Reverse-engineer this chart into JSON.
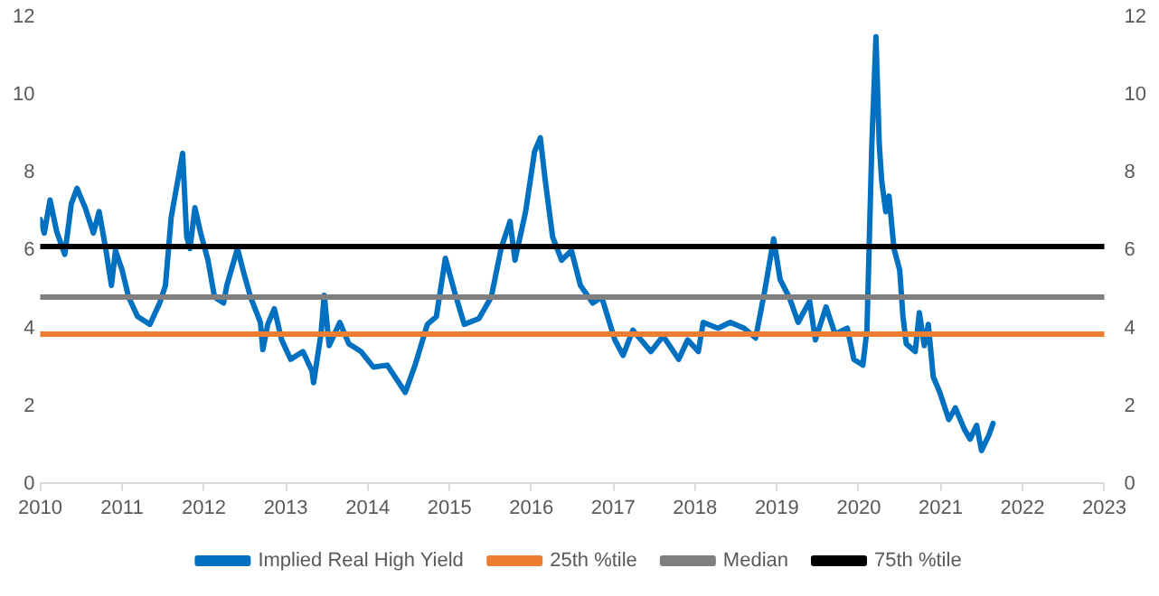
{
  "chart_data": {
    "type": "line",
    "legend": "bottom",
    "grid": false,
    "marker": "none",
    "line_style": "solid",
    "xlim": [
      2010,
      2023
    ],
    "xticks": [
      2010,
      2011,
      2012,
      2013,
      2014,
      2015,
      2016,
      2017,
      2018,
      2019,
      2020,
      2021,
      2022,
      2023
    ],
    "ylim": [
      0,
      12
    ],
    "yticks": [
      0,
      2,
      4,
      6,
      8,
      10,
      12
    ],
    "y2lim": [
      0,
      12
    ],
    "y2ticks": [
      0,
      2,
      4,
      6,
      8,
      10,
      12
    ],
    "series": [
      {
        "name": "Implied Real High Yield",
        "color": "#0070c0",
        "x": [
          2010.0,
          2010.05,
          2010.12,
          2010.2,
          2010.3,
          2010.38,
          2010.45,
          2010.55,
          2010.65,
          2010.72,
          2010.8,
          2010.87,
          2010.92,
          2011.0,
          2011.08,
          2011.19,
          2011.34,
          2011.46,
          2011.53,
          2011.6,
          2011.74,
          2011.79,
          2011.83,
          2011.89,
          2011.96,
          2012.05,
          2012.13,
          2012.24,
          2012.28,
          2012.41,
          2012.49,
          2012.57,
          2012.69,
          2012.72,
          2012.78,
          2012.86,
          2012.95,
          2013.06,
          2013.21,
          2013.32,
          2013.34,
          2013.43,
          2013.47,
          2013.53,
          2013.66,
          2013.77,
          2013.92,
          2014.07,
          2014.24,
          2014.46,
          2014.58,
          2014.73,
          2014.84,
          2014.95,
          2015.06,
          2015.18,
          2015.36,
          2015.51,
          2015.63,
          2015.74,
          2015.8,
          2015.93,
          2016.04,
          2016.11,
          2016.17,
          2016.26,
          2016.37,
          2016.49,
          2016.6,
          2016.75,
          2016.86,
          2017.02,
          2017.12,
          2017.24,
          2017.46,
          2017.61,
          2017.8,
          2017.91,
          2018.04,
          2018.1,
          2018.28,
          2018.43,
          2018.6,
          2018.74,
          2018.85,
          2018.96,
          2019.04,
          2019.15,
          2019.26,
          2019.4,
          2019.47,
          2019.6,
          2019.71,
          2019.86,
          2019.94,
          2020.05,
          2020.1,
          2020.16,
          2020.21,
          2020.25,
          2020.28,
          2020.33,
          2020.37,
          2020.43,
          2020.5,
          2020.54,
          2020.58,
          2020.69,
          2020.74,
          2020.8,
          2020.85,
          2020.91,
          2020.99,
          2021.1,
          2021.18,
          2021.29,
          2021.36,
          2021.44,
          2021.5,
          2021.59,
          2021.64
        ],
        "values": [
          6.8,
          6.45,
          7.3,
          6.5,
          5.9,
          7.2,
          7.6,
          7.1,
          6.45,
          7.0,
          6.05,
          5.1,
          6.0,
          5.5,
          4.8,
          4.3,
          4.1,
          4.65,
          5.1,
          6.85,
          8.5,
          6.35,
          6.05,
          7.1,
          6.45,
          5.75,
          4.8,
          4.65,
          5.1,
          6.05,
          5.4,
          4.8,
          4.15,
          3.45,
          4.1,
          4.5,
          3.7,
          3.2,
          3.4,
          2.9,
          2.6,
          3.85,
          4.85,
          3.55,
          4.15,
          3.6,
          3.4,
          3.0,
          3.05,
          2.35,
          3.05,
          4.1,
          4.3,
          5.8,
          4.95,
          4.1,
          4.25,
          4.8,
          6.05,
          6.75,
          5.75,
          7.0,
          8.55,
          8.9,
          7.8,
          6.35,
          5.75,
          6.0,
          5.1,
          4.65,
          4.8,
          3.7,
          3.3,
          3.95,
          3.4,
          3.8,
          3.2,
          3.7,
          3.4,
          4.15,
          4.0,
          4.15,
          4.0,
          3.75,
          4.95,
          6.3,
          5.25,
          4.8,
          4.15,
          4.7,
          3.7,
          4.55,
          3.85,
          4.0,
          3.2,
          3.05,
          3.95,
          8.75,
          11.5,
          8.75,
          7.8,
          7.0,
          7.4,
          6.05,
          5.5,
          4.3,
          3.6,
          3.4,
          4.4,
          3.55,
          4.1,
          2.75,
          2.35,
          1.65,
          1.95,
          1.4,
          1.15,
          1.5,
          0.85,
          1.25,
          1.55
        ]
      },
      {
        "name": "25th %tile",
        "color": "#ed7d31",
        "x": [
          2010,
          2023
        ],
        "values": [
          3.85,
          3.85
        ]
      },
      {
        "name": "Median",
        "color": "#7f7f7f",
        "x": [
          2010,
          2023
        ],
        "values": [
          4.8,
          4.8
        ]
      },
      {
        "name": "75th %tile",
        "color": "#000000",
        "x": [
          2010,
          2023
        ],
        "values": [
          6.1,
          6.1
        ]
      }
    ]
  }
}
